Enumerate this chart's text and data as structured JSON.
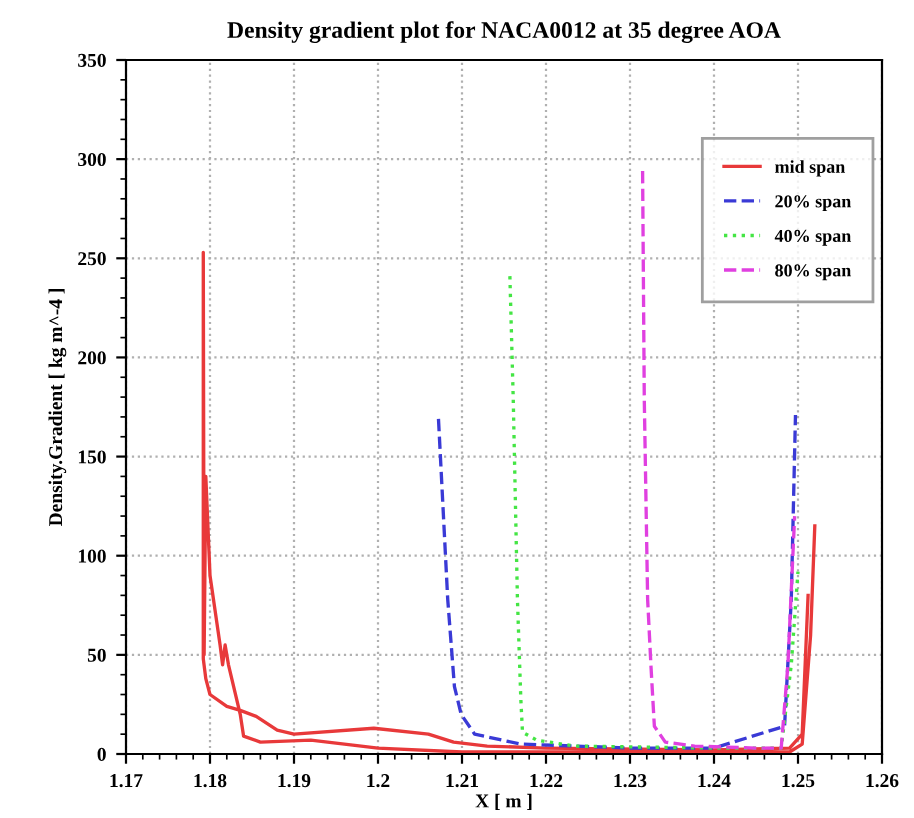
{
  "chart_data": {
    "type": "line",
    "title": "Density gradient plot for NACA0012 at 35 degree AOA",
    "xlabel": "X [ m ]",
    "ylabel": "Density.Gradient [ kg m^-4 ]",
    "xlim": [
      1.17,
      1.26
    ],
    "xticks": [
      1.17,
      1.18,
      1.19,
      1.2,
      1.21,
      1.22,
      1.23,
      1.24,
      1.25,
      1.26
    ],
    "ylim": [
      0,
      350
    ],
    "yticks": [
      0,
      50,
      100,
      150,
      200,
      250,
      300,
      350
    ],
    "grid": true,
    "legend": "top right",
    "series": [
      {
        "name": "mid span",
        "color": "#e8393a",
        "line_style": "solid",
        "x": [
          1.252,
          1.2515,
          1.2505,
          1.249,
          1.23,
          1.21,
          1.2,
          1.192,
          1.186,
          1.184,
          1.1836,
          1.1822,
          1.1818,
          1.1815,
          1.1812,
          1.18,
          1.1795,
          1.1793,
          1.1792,
          1.1792,
          1.1795,
          1.18,
          1.182,
          1.1836,
          1.1855,
          1.188,
          1.19,
          1.1995,
          1.206,
          1.209,
          1.213,
          1.22,
          1.24,
          1.249,
          1.2505,
          1.2512
        ],
        "values": [
          115,
          60,
          5,
          1,
          1,
          1,
          3,
          7,
          6,
          9,
          20,
          45,
          55,
          45,
          55,
          90,
          140,
          50,
          253,
          48,
          38,
          30,
          24,
          22,
          19,
          12,
          10,
          13,
          10,
          6,
          4,
          3,
          2,
          3,
          10,
          80
        ]
      },
      {
        "name": "20% span",
        "color": "#3a3ad6",
        "line_style": "dashed",
        "x": [
          1.2072,
          1.2083,
          1.2091,
          1.2099,
          1.2115,
          1.217,
          1.23,
          1.24,
          1.2484,
          1.2492,
          1.2497
        ],
        "values": [
          169,
          78,
          34,
          20,
          10,
          5,
          3,
          3,
          14,
          78,
          171
        ]
      },
      {
        "name": "40% span",
        "color": "#44e544",
        "line_style": "dotted",
        "x": [
          1.2157,
          1.2161,
          1.2166,
          1.217,
          1.2172,
          1.2189,
          1.2234,
          1.24,
          1.248,
          1.2492,
          1.25
        ],
        "values": [
          241,
          179,
          78,
          28,
          11,
          7,
          4,
          3,
          3,
          45,
          92
        ]
      },
      {
        "name": "80% span",
        "color": "#e040e0",
        "line_style": "dashed",
        "x": [
          1.2315,
          1.2317,
          1.2321,
          1.2325,
          1.2329,
          1.2342,
          1.2377,
          1.245,
          1.248,
          1.2488,
          1.2496
        ],
        "values": [
          294,
          179,
          78,
          44,
          14,
          6,
          4,
          3,
          3,
          45,
          120
        ]
      }
    ]
  }
}
